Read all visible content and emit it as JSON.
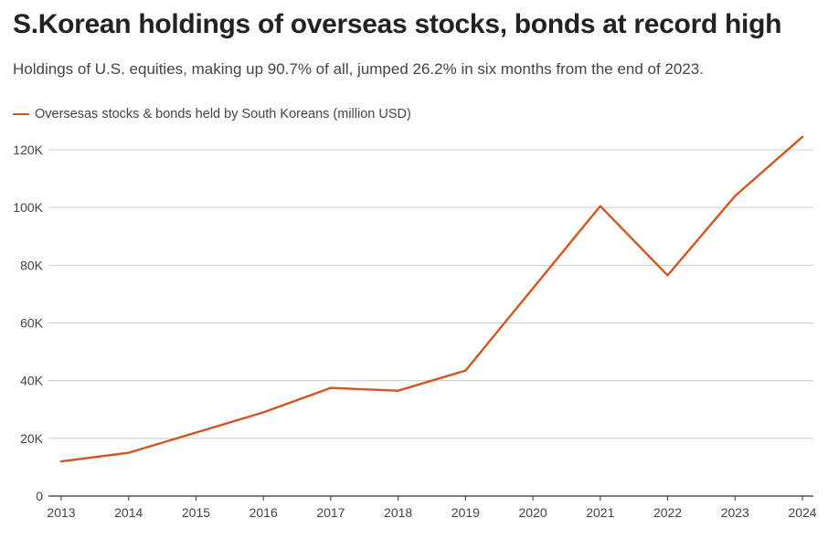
{
  "header": {
    "title": "S.Korean holdings of overseas stocks, bonds at record high",
    "subtitle": "Holdings of U.S. equities, making up 90.7% of all, jumped 26.2% in six months from the end of 2023."
  },
  "colors": {
    "series": "#d4551c",
    "grid": "#cccccc",
    "axis": "#333333"
  },
  "chart_data": {
    "type": "line",
    "title": "S.Korean holdings of overseas stocks, bonds at record high",
    "xlabel": "",
    "ylabel": "",
    "x": [
      "2013",
      "2014",
      "2015",
      "2016",
      "2017",
      "2018",
      "2019",
      "2020",
      "2021",
      "2022",
      "2023",
      "2024"
    ],
    "series": [
      {
        "name": "Oversesas stocks & bonds held by South Koreans (million USD)",
        "values": [
          12000,
          15000,
          22000,
          29000,
          37500,
          36500,
          43500,
          72000,
          100500,
          76500,
          104000,
          124500
        ]
      }
    ],
    "ylim": [
      0,
      120000
    ],
    "yticks": [
      0,
      20000,
      40000,
      60000,
      80000,
      100000,
      120000
    ],
    "ytick_labels": [
      "0",
      "20K",
      "40K",
      "60K",
      "80K",
      "100K",
      "120K"
    ],
    "grid": true,
    "legend_position": "top-left"
  }
}
